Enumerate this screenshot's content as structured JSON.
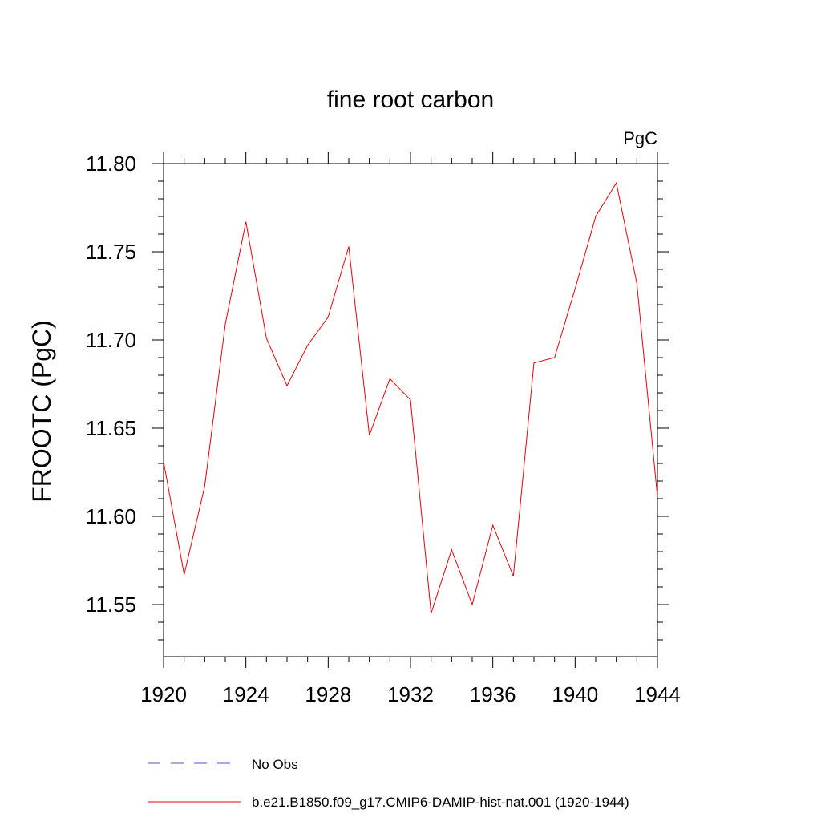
{
  "chart_data": {
    "type": "line",
    "title": "fine root carbon",
    "units": "PgC",
    "ylabel": "FROOTC  (PgC)",
    "xlabel": "",
    "xlim": [
      1920,
      1944
    ],
    "ylim": [
      11.52,
      11.808
    ],
    "xticks": [
      1920,
      1924,
      1928,
      1932,
      1936,
      1940,
      1944
    ],
    "yticks": [
      11.55,
      11.6,
      11.65,
      11.7,
      11.75,
      11.8
    ],
    "ytick_labels": [
      "11.55",
      "11.60",
      "11.65",
      "11.70",
      "11.75",
      "11.80"
    ],
    "grid": false,
    "legend_placement": "bottom",
    "series": [
      {
        "name": "No Obs",
        "color": "#5a4fd0",
        "style": "dashed",
        "x": [],
        "y": []
      },
      {
        "name": "b.e21.B1850.f09_g17.CMIP6-DAMIP-hist-nat.001 (1920-1944)",
        "color": "#e8000b",
        "style": "solid",
        "x": [
          1920,
          1921,
          1922,
          1923,
          1924,
          1925,
          1926,
          1927,
          1928,
          1929,
          1930,
          1931,
          1932,
          1933,
          1934,
          1935,
          1936,
          1937,
          1938,
          1939,
          1940,
          1941,
          1942,
          1943,
          1944
        ],
        "y": [
          11.631,
          11.567,
          11.617,
          11.709,
          11.767,
          11.701,
          11.674,
          11.697,
          11.713,
          11.753,
          11.646,
          11.678,
          11.666,
          11.545,
          11.581,
          11.55,
          11.595,
          11.566,
          11.687,
          11.69,
          11.729,
          11.77,
          11.789,
          11.732,
          11.611
        ]
      }
    ]
  }
}
